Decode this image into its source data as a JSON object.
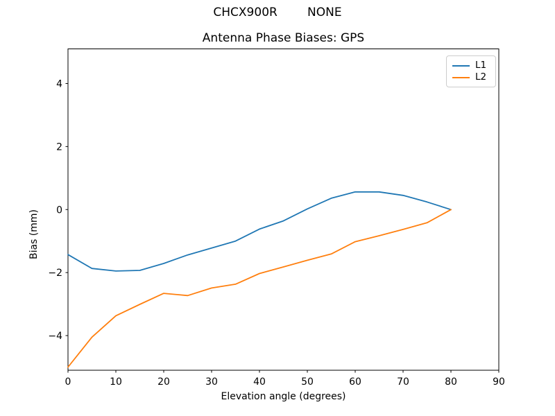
{
  "chart_data": {
    "type": "line",
    "title": "CHCX900R        NONE",
    "subtitle": "Antenna Phase Biases: GPS",
    "xlabel": "Elevation angle (degrees)",
    "ylabel": "Bias (mm)",
    "xlim": [
      0,
      90
    ],
    "ylim": [
      -5.1,
      5.1
    ],
    "xticks": [
      0,
      10,
      20,
      30,
      40,
      50,
      60,
      70,
      80,
      90
    ],
    "yticks": [
      -4,
      -2,
      0,
      2,
      4
    ],
    "grid": false,
    "legend_position": "upper right",
    "background_color": "#ffffff",
    "axis_color": "#000000",
    "x": [
      0,
      5,
      10,
      15,
      20,
      25,
      30,
      35,
      40,
      45,
      50,
      55,
      60,
      65,
      70,
      75,
      80
    ],
    "series": [
      {
        "name": "L1",
        "color": "#1f77b4",
        "values": [
          -1.43,
          -1.87,
          -1.95,
          -1.93,
          -1.71,
          -1.44,
          -1.22,
          -1.0,
          -0.62,
          -0.36,
          0.02,
          0.36,
          0.56,
          0.56,
          0.45,
          0.24,
          0.0
        ]
      },
      {
        "name": "L2",
        "color": "#ff7f0e",
        "values": [
          -5.0,
          -4.05,
          -3.37,
          -3.01,
          -2.66,
          -2.73,
          -2.49,
          -2.37,
          -2.03,
          -1.82,
          -1.61,
          -1.41,
          -1.02,
          -0.83,
          -0.63,
          -0.42,
          0.0
        ]
      }
    ]
  }
}
